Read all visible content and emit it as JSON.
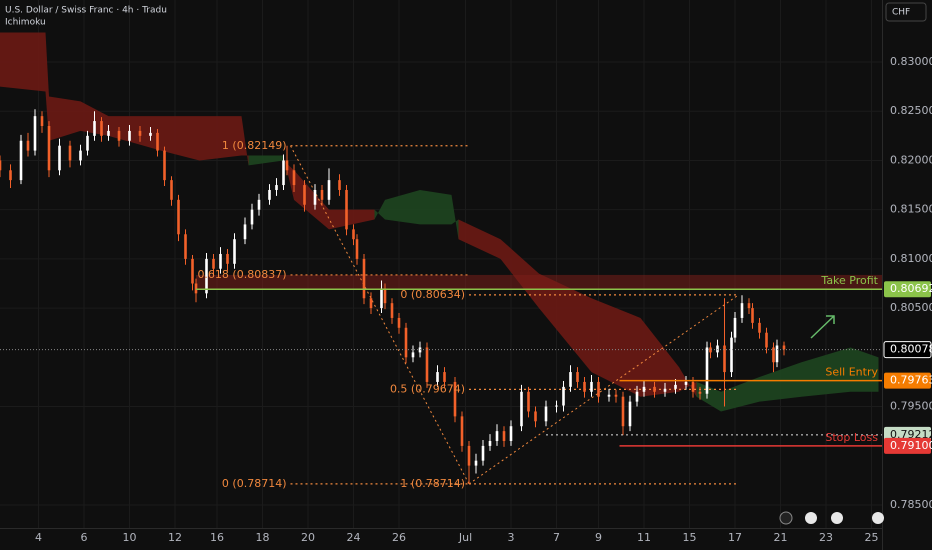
{
  "chart_data": {
    "type": "candlestick",
    "title": "U.S. Dollar / Swiss Franc · 4h · Tradu",
    "indicator": "Ichimoku",
    "currency": "CHF",
    "up_color": "#ffffff",
    "down_color": "#f2612a",
    "xlim": [
      0,
      252
    ],
    "xticks": [
      {
        "value": 11,
        "label": "4"
      },
      {
        "value": 24,
        "label": "6"
      },
      {
        "value": 37,
        "label": "10"
      },
      {
        "value": 50,
        "label": "12"
      },
      {
        "value": 62,
        "label": "16"
      },
      {
        "value": 75,
        "label": "18"
      },
      {
        "value": 88,
        "label": "20"
      },
      {
        "value": 101,
        "label": "24"
      },
      {
        "value": 114,
        "label": "26"
      },
      {
        "value": 133,
        "label": "Jul"
      },
      {
        "value": 146,
        "label": "3"
      },
      {
        "value": 159,
        "label": "7"
      },
      {
        "value": 171,
        "label": "9"
      },
      {
        "value": 184,
        "label": "11"
      },
      {
        "value": 197,
        "label": "15"
      },
      {
        "value": 210,
        "label": "17"
      },
      {
        "value": 223,
        "label": "21"
      },
      {
        "value": 236,
        "label": "23"
      },
      {
        "value": 249,
        "label": "25"
      }
    ],
    "ylim": [
      0.78266,
      0.8363
    ],
    "yticks": [
      {
        "value": 0.83,
        "label": "0.83000"
      },
      {
        "value": 0.825,
        "label": "0.82500"
      },
      {
        "value": 0.82,
        "label": "0.82000"
      },
      {
        "value": 0.815,
        "label": "0.81500"
      },
      {
        "value": 0.81,
        "label": "0.81000"
      },
      {
        "value": 0.805,
        "label": "0.80500"
      },
      {
        "value": 0.795,
        "label": "0.79500"
      },
      {
        "value": 0.785,
        "label": "0.78500"
      }
    ],
    "x": [
      0,
      3,
      6,
      8,
      10,
      12,
      14,
      17,
      20,
      23,
      25,
      27,
      29,
      31,
      34,
      37,
      40,
      43,
      45,
      47,
      49,
      51,
      53,
      55,
      56,
      59,
      61,
      63,
      65,
      67,
      70,
      72,
      74,
      77,
      79,
      81,
      82,
      84,
      87,
      90,
      92,
      94,
      97,
      99,
      101,
      102,
      104,
      106,
      109,
      110,
      112,
      114,
      116,
      118,
      120,
      122,
      125,
      127,
      130,
      132,
      134,
      136,
      138,
      140,
      142,
      144,
      146,
      149,
      151,
      153,
      156,
      159,
      161,
      163,
      165,
      167,
      169,
      171,
      174,
      176,
      178,
      180,
      182,
      184,
      187,
      190,
      193,
      196,
      198,
      200,
      202,
      203,
      205,
      207,
      209,
      210,
      212,
      214,
      215,
      217,
      219,
      221,
      222,
      224
    ],
    "ohlc": [
      [
        0.82,
        0.8205,
        0.8183,
        0.819
      ],
      [
        0.819,
        0.8196,
        0.8172,
        0.818
      ],
      [
        0.818,
        0.8226,
        0.8176,
        0.822
      ],
      [
        0.822,
        0.8228,
        0.8204,
        0.821
      ],
      [
        0.821,
        0.8252,
        0.8205,
        0.8245
      ],
      [
        0.8245,
        0.825,
        0.8228,
        0.8235
      ],
      [
        0.8235,
        0.824,
        0.8183,
        0.819
      ],
      [
        0.819,
        0.8222,
        0.8185,
        0.8215
      ],
      [
        0.8215,
        0.822,
        0.8193,
        0.82
      ],
      [
        0.82,
        0.8216,
        0.8195,
        0.821
      ],
      [
        0.821,
        0.823,
        0.8205,
        0.8225
      ],
      [
        0.8225,
        0.825,
        0.822,
        0.824
      ],
      [
        0.824,
        0.8244,
        0.8219,
        0.8225
      ],
      [
        0.8225,
        0.8236,
        0.822,
        0.823
      ],
      [
        0.823,
        0.8234,
        0.8214,
        0.822
      ],
      [
        0.822,
        0.8236,
        0.8215,
        0.823
      ],
      [
        0.823,
        0.8235,
        0.8219,
        0.8225
      ],
      [
        0.8225,
        0.8234,
        0.822,
        0.8228
      ],
      [
        0.8228,
        0.8232,
        0.8204,
        0.821
      ],
      [
        0.821,
        0.8214,
        0.8174,
        0.818
      ],
      [
        0.818,
        0.8184,
        0.8154,
        0.816
      ],
      [
        0.816,
        0.8165,
        0.8118,
        0.8125
      ],
      [
        0.8125,
        0.813,
        0.8094,
        0.81
      ],
      [
        0.81,
        0.8104,
        0.8068,
        0.8075
      ],
      [
        0.8075,
        0.808,
        0.8056,
        0.8065
      ],
      [
        0.8065,
        0.8106,
        0.806,
        0.81
      ],
      [
        0.81,
        0.8105,
        0.8084,
        0.809
      ],
      [
        0.809,
        0.8112,
        0.8085,
        0.8105
      ],
      [
        0.8105,
        0.811,
        0.8088,
        0.8095
      ],
      [
        0.8095,
        0.8126,
        0.809,
        0.812
      ],
      [
        0.812,
        0.8142,
        0.8115,
        0.8135
      ],
      [
        0.8135,
        0.8156,
        0.813,
        0.815
      ],
      [
        0.815,
        0.8166,
        0.8144,
        0.816
      ],
      [
        0.816,
        0.8176,
        0.8155,
        0.817
      ],
      [
        0.817,
        0.8182,
        0.8164,
        0.8175
      ],
      [
        0.8175,
        0.8206,
        0.817,
        0.82
      ],
      [
        0.82,
        0.82149,
        0.8185,
        0.819
      ],
      [
        0.819,
        0.8196,
        0.8168,
        0.8175
      ],
      [
        0.8175,
        0.818,
        0.8148,
        0.8155
      ],
      [
        0.8155,
        0.8176,
        0.815,
        0.817
      ],
      [
        0.817,
        0.8175,
        0.8154,
        0.816
      ],
      [
        0.816,
        0.8192,
        0.8155,
        0.818
      ],
      [
        0.818,
        0.8186,
        0.8164,
        0.817
      ],
      [
        0.817,
        0.8175,
        0.8124,
        0.813
      ],
      [
        0.813,
        0.8135,
        0.8114,
        0.812
      ],
      [
        0.812,
        0.8125,
        0.8094,
        0.81
      ],
      [
        0.81,
        0.8105,
        0.8054,
        0.806
      ],
      [
        0.806,
        0.8066,
        0.8044,
        0.805
      ],
      [
        0.805,
        0.8078,
        0.8045,
        0.807
      ],
      [
        0.807,
        0.8075,
        0.8049,
        0.8055
      ],
      [
        0.8055,
        0.806,
        0.8034,
        0.804
      ],
      [
        0.804,
        0.8045,
        0.8024,
        0.803
      ],
      [
        0.803,
        0.8035,
        0.7994,
        0.8
      ],
      [
        0.8,
        0.8012,
        0.7995,
        0.8005
      ],
      [
        0.8005,
        0.8016,
        0.8,
        0.801
      ],
      [
        0.801,
        0.8015,
        0.7969,
        0.7975
      ],
      [
        0.7975,
        0.7992,
        0.797,
        0.7985
      ],
      [
        0.7985,
        0.799,
        0.7969,
        0.7975
      ],
      [
        0.7975,
        0.798,
        0.7934,
        0.794
      ],
      [
        0.794,
        0.7945,
        0.7904,
        0.791
      ],
      [
        0.791,
        0.7915,
        0.78714,
        0.789
      ],
      [
        0.789,
        0.7902,
        0.7882,
        0.7895
      ],
      [
        0.7895,
        0.7916,
        0.789,
        0.791
      ],
      [
        0.791,
        0.7922,
        0.7905,
        0.7915
      ],
      [
        0.7915,
        0.7932,
        0.791,
        0.7925
      ],
      [
        0.7925,
        0.793,
        0.7909,
        0.7915
      ],
      [
        0.7915,
        0.7936,
        0.791,
        0.793
      ],
      [
        0.793,
        0.7972,
        0.7925,
        0.7965
      ],
      [
        0.7965,
        0.797,
        0.7939,
        0.7945
      ],
      [
        0.7945,
        0.795,
        0.7929,
        0.7935
      ],
      [
        0.7935,
        0.7956,
        0.793,
        0.795
      ],
      [
        0.795,
        0.7956,
        0.7944,
        0.7951
      ],
      [
        0.7951,
        0.7976,
        0.7945,
        0.797
      ],
      [
        0.797,
        0.7992,
        0.7965,
        0.7985
      ],
      [
        0.7985,
        0.799,
        0.7969,
        0.7975
      ],
      [
        0.7975,
        0.798,
        0.7959,
        0.7965
      ],
      [
        0.7965,
        0.7982,
        0.796,
        0.7975
      ],
      [
        0.7975,
        0.798,
        0.7954,
        0.796
      ],
      [
        0.796,
        0.7968,
        0.7955,
        0.7962
      ],
      [
        0.7962,
        0.7967,
        0.7954,
        0.796
      ],
      [
        0.796,
        0.7965,
        0.7921,
        0.793
      ],
      [
        0.793,
        0.7961,
        0.7925,
        0.7955
      ],
      [
        0.7955,
        0.7971,
        0.795,
        0.7965
      ],
      [
        0.7965,
        0.7976,
        0.796,
        0.797
      ],
      [
        0.797,
        0.7975,
        0.7959,
        0.7965
      ],
      [
        0.7965,
        0.7974,
        0.796,
        0.7968
      ],
      [
        0.7968,
        0.7978,
        0.7963,
        0.7972
      ],
      [
        0.7972,
        0.7981,
        0.7967,
        0.7975
      ],
      [
        0.7975,
        0.798,
        0.7959,
        0.7965
      ],
      [
        0.7965,
        0.797,
        0.7957,
        0.7963
      ],
      [
        0.7963,
        0.8016,
        0.7958,
        0.801
      ],
      [
        0.801,
        0.8015,
        0.7999,
        0.8005
      ],
      [
        0.8005,
        0.8018,
        0.8,
        0.8012
      ],
      [
        0.8012,
        0.806,
        0.795,
        0.7985
      ],
      [
        0.7985,
        0.8026,
        0.798,
        0.802
      ],
      [
        0.802,
        0.8046,
        0.8015,
        0.804
      ],
      [
        0.804,
        0.8063,
        0.8035,
        0.8055
      ],
      [
        0.8055,
        0.806,
        0.8044,
        0.805
      ],
      [
        0.805,
        0.8055,
        0.8029,
        0.8035
      ],
      [
        0.8035,
        0.804,
        0.8019,
        0.8025
      ],
      [
        0.8025,
        0.803,
        0.8004,
        0.801
      ],
      [
        0.801,
        0.8015,
        0.7985,
        0.7995
      ],
      [
        0.7995,
        0.8018,
        0.799,
        0.8012
      ],
      [
        0.8012,
        0.8016,
        0.8002,
        0.8008
      ]
    ],
    "ichimoku": {
      "bull_color": "#1e4620",
      "bear_color": "#6b1a14",
      "x": [
        0,
        13,
        14,
        23,
        31,
        46,
        57,
        69,
        71,
        81,
        84,
        94,
        107,
        110,
        120,
        129,
        131,
        143,
        154,
        169,
        183,
        194,
        199,
        206,
        217,
        229,
        243,
        251
      ],
      "span_a": [
        0.8275,
        0.827,
        0.822,
        0.823,
        0.8225,
        0.821,
        0.82,
        0.8205,
        0.8205,
        0.8205,
        0.816,
        0.813,
        0.814,
        0.816,
        0.817,
        0.8165,
        0.812,
        0.81,
        0.805,
        0.7985,
        0.796,
        0.7965,
        0.7975,
        0.7965,
        0.798,
        0.7995,
        0.801,
        0.8
      ],
      "span_b": [
        0.833,
        0.833,
        0.8265,
        0.826,
        0.8245,
        0.8245,
        0.8245,
        0.8245,
        0.8195,
        0.82,
        0.819,
        0.815,
        0.815,
        0.814,
        0.8135,
        0.8135,
        0.814,
        0.812,
        0.8085,
        0.806,
        0.804,
        0.799,
        0.796,
        0.7945,
        0.7955,
        0.796,
        0.7965,
        0.7965
      ]
    },
    "fibs": [
      {
        "color": "#f0883e",
        "x": [
          83,
          134
        ],
        "levels": [
          {
            "label": "1 (0.82149)",
            "value": 0.82149
          },
          {
            "label": "0.618 (0.80837)",
            "value": 0.80837
          },
          {
            "label": "0 (0.78714)",
            "value": 0.78714
          }
        ]
      },
      {
        "color": "#f0883e",
        "x": [
          134,
          211
        ],
        "levels": [
          {
            "label": "1 (0.78714)",
            "value": 0.78714
          },
          {
            "label": "0.5 (0.79674)",
            "value": 0.79674
          },
          {
            "label": "0 (0.80634)",
            "value": 0.80634
          }
        ]
      }
    ],
    "levels": [
      {
        "name": "Take Profit",
        "color": "#8bc34a",
        "x": [
          56,
          252
        ],
        "price": {
          "value": 0.80692,
          "label": "0.80692"
        }
      },
      {
        "name": "Sell Entry",
        "color": "#f57c00",
        "x": [
          177,
          252
        ],
        "price": {
          "value": 0.79763,
          "label": "0.79763"
        }
      },
      {
        "name": "Stop Loss",
        "color": "#e53935",
        "x": [
          177,
          252
        ],
        "price": {
          "value": 0.791,
          "label": "0.79100"
        }
      }
    ],
    "support": {
      "color": "#c5dcc5",
      "x": [
        156,
        252
      ],
      "price": {
        "value": 0.79212,
        "label": "0.79212"
      }
    },
    "last_price": {
      "value": 0.80078,
      "label": "0.80078"
    }
  }
}
